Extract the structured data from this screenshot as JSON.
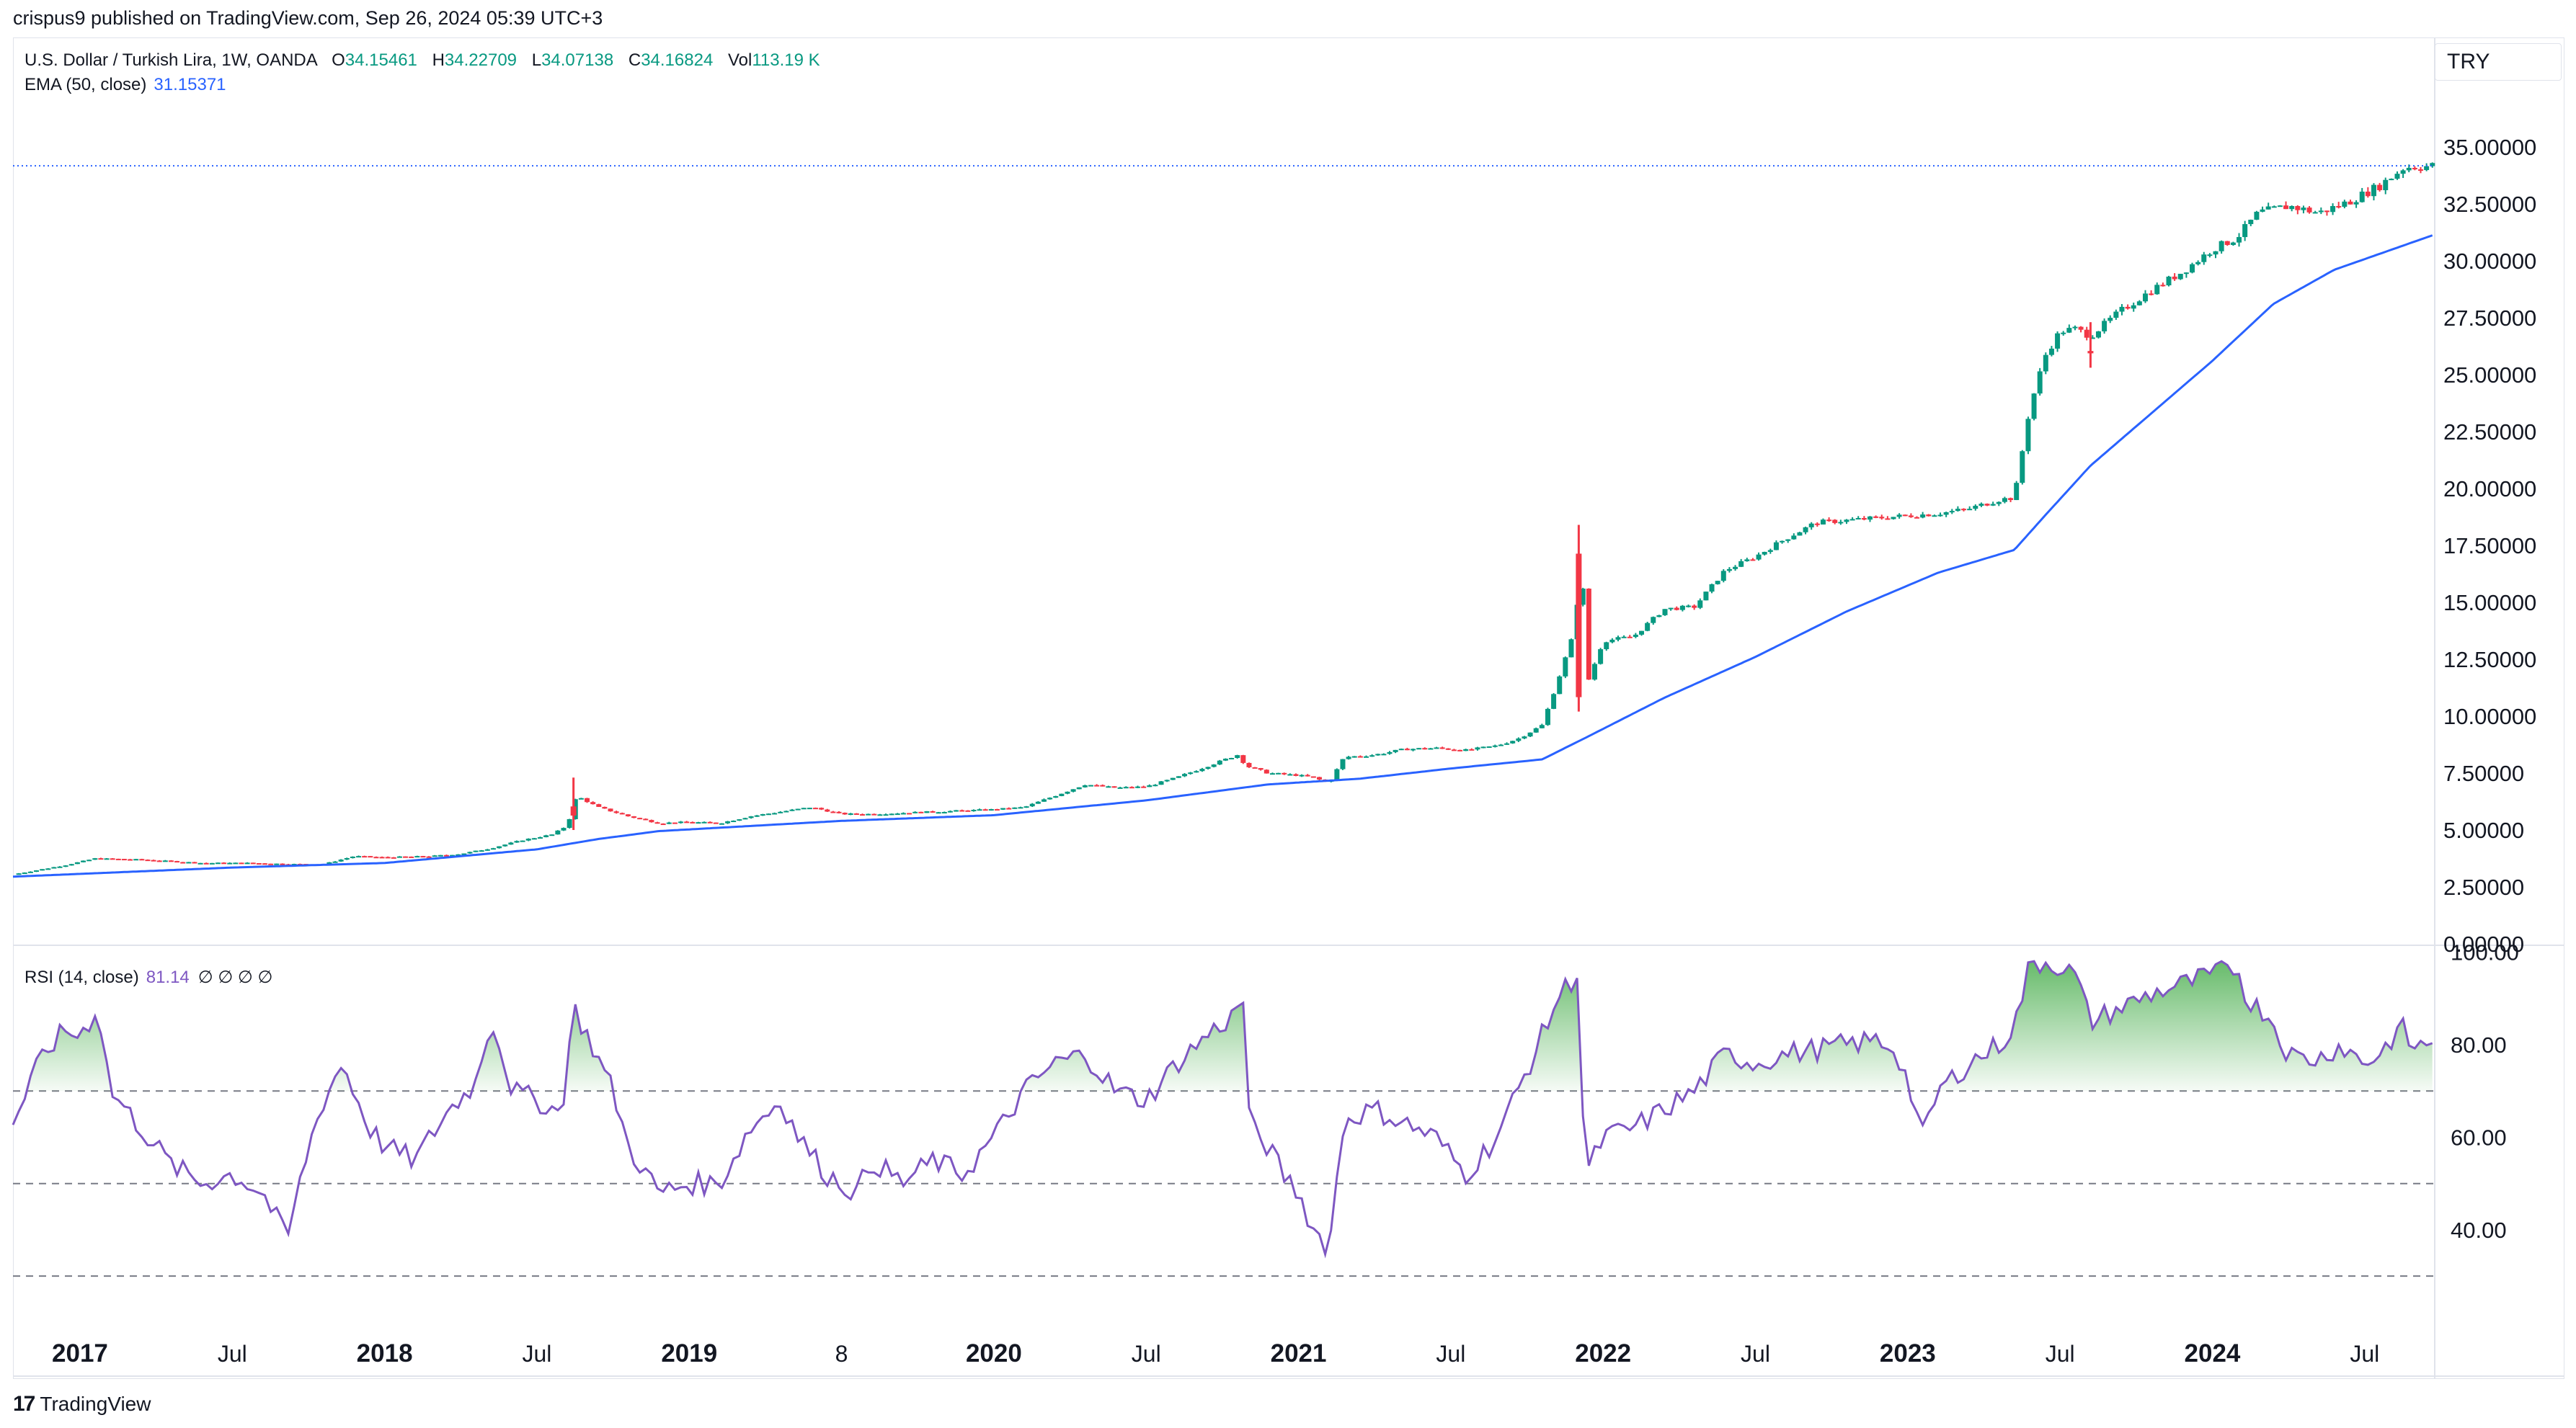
{
  "header": {
    "publisher": "crispus9 published on TradingView.com, Sep 26, 2024 05:39 UTC+3"
  },
  "legend": {
    "symbol": "U.S. Dollar / Turkish Lira, 1W, OANDA",
    "o_label": "O",
    "o_value": "34.15461",
    "h_label": "H",
    "h_value": "34.22709",
    "l_label": "L",
    "l_value": "34.07138",
    "c_label": "C",
    "c_value": "34.16824",
    "vol_label": "Vol",
    "vol_value": "113.19 K",
    "ema_label": "EMA (50, close)",
    "ema_value": "31.15371",
    "rsi_label": "RSI (14, close)",
    "rsi_value": "81.14",
    "rsi_null": "∅ ∅ ∅ ∅"
  },
  "currency": "TRY",
  "footer": {
    "brand": "TradingView"
  },
  "colors": {
    "up": "#089981",
    "down": "#f23645",
    "ema": "#2962ff",
    "rsi": "#7e57c2",
    "rsi_fill": "#4caf50"
  },
  "chart_data": [
    {
      "type": "line",
      "subtype": "candlestick",
      "price_ticks": [
        "0.00000",
        "2.50000",
        "5.00000",
        "7.50000",
        "10.00000",
        "12.50000",
        "15.00000",
        "17.50000",
        "20.00000",
        "22.50000",
        "25.00000",
        "27.50000",
        "30.00000",
        "32.50000",
        "35.00000"
      ],
      "ylim": [
        0,
        35.5
      ],
      "x_ticks": [
        {
          "label": "2017",
          "t": 2017.0,
          "bold": true
        },
        {
          "label": "Jul",
          "t": 2017.5
        },
        {
          "label": "2018",
          "t": 2018.0,
          "bold": true
        },
        {
          "label": "Jul",
          "t": 2018.5
        },
        {
          "label": "2019",
          "t": 2019.0,
          "bold": true
        },
        {
          "label": "8",
          "t": 2019.5
        },
        {
          "label": "2020",
          "t": 2020.0,
          "bold": true
        },
        {
          "label": "Jul",
          "t": 2020.5
        },
        {
          "label": "2021",
          "t": 2021.0,
          "bold": true
        },
        {
          "label": "Jul",
          "t": 2021.5
        },
        {
          "label": "2022",
          "t": 2022.0,
          "bold": true
        },
        {
          "label": "Jul",
          "t": 2022.5
        },
        {
          "label": "2023",
          "t": 2023.0,
          "bold": true
        },
        {
          "label": "Jul",
          "t": 2023.5
        },
        {
          "label": "2024",
          "t": 2024.0,
          "bold": true
        },
        {
          "label": "Jul",
          "t": 2024.5
        }
      ],
      "xlim": [
        2016.78,
        2024.73
      ],
      "last_price": 34.16824,
      "close_anchors": [
        [
          2016.78,
          3.05
        ],
        [
          2016.95,
          3.45
        ],
        [
          2017.05,
          3.75
        ],
        [
          2017.2,
          3.7
        ],
        [
          2017.4,
          3.55
        ],
        [
          2017.55,
          3.55
        ],
        [
          2017.7,
          3.5
        ],
        [
          2017.8,
          3.5
        ],
        [
          2017.9,
          3.85
        ],
        [
          2018.0,
          3.8
        ],
        [
          2018.15,
          3.85
        ],
        [
          2018.25,
          3.95
        ],
        [
          2018.35,
          4.2
        ],
        [
          2018.45,
          4.55
        ],
        [
          2018.55,
          4.8
        ],
        [
          2018.6,
          5.2
        ],
        [
          2018.63,
          6.5
        ],
        [
          2018.7,
          6.0
        ],
        [
          2018.8,
          5.6
        ],
        [
          2018.9,
          5.3
        ],
        [
          2019.0,
          5.35
        ],
        [
          2019.1,
          5.3
        ],
        [
          2019.2,
          5.6
        ],
        [
          2019.3,
          5.8
        ],
        [
          2019.4,
          6.0
        ],
        [
          2019.5,
          5.7
        ],
        [
          2019.6,
          5.7
        ],
        [
          2019.7,
          5.75
        ],
        [
          2019.8,
          5.8
        ],
        [
          2019.9,
          5.85
        ],
        [
          2020.0,
          5.9
        ],
        [
          2020.1,
          6.0
        ],
        [
          2020.2,
          6.5
        ],
        [
          2020.3,
          7.0
        ],
        [
          2020.4,
          6.85
        ],
        [
          2020.5,
          6.9
        ],
        [
          2020.6,
          7.3
        ],
        [
          2020.7,
          7.8
        ],
        [
          2020.8,
          8.3
        ],
        [
          2020.83,
          7.8
        ],
        [
          2020.9,
          7.5
        ],
        [
          2021.0,
          7.4
        ],
        [
          2021.05,
          7.3
        ],
        [
          2021.1,
          7.05
        ],
        [
          2021.15,
          8.2
        ],
        [
          2021.25,
          8.3
        ],
        [
          2021.35,
          8.55
        ],
        [
          2021.45,
          8.6
        ],
        [
          2021.55,
          8.5
        ],
        [
          2021.65,
          8.7
        ],
        [
          2021.72,
          9.0
        ],
        [
          2021.8,
          9.6
        ],
        [
          2021.85,
          11.5
        ],
        [
          2021.9,
          13.5
        ],
        [
          2021.93,
          16.5
        ],
        [
          2021.95,
          11.5
        ],
        [
          2022.0,
          13.3
        ],
        [
          2022.1,
          13.5
        ],
        [
          2022.2,
          14.7
        ],
        [
          2022.3,
          14.8
        ],
        [
          2022.4,
          16.4
        ],
        [
          2022.5,
          17.0
        ],
        [
          2022.6,
          17.8
        ],
        [
          2022.7,
          18.5
        ],
        [
          2022.8,
          18.6
        ],
        [
          2022.9,
          18.7
        ],
        [
          2023.0,
          18.8
        ],
        [
          2023.1,
          18.9
        ],
        [
          2023.2,
          19.1
        ],
        [
          2023.3,
          19.5
        ],
        [
          2023.35,
          19.6
        ],
        [
          2023.4,
          23.5
        ],
        [
          2023.45,
          25.8
        ],
        [
          2023.5,
          26.9
        ],
        [
          2023.55,
          27.0
        ],
        [
          2023.6,
          26.7
        ],
        [
          2023.7,
          27.8
        ],
        [
          2023.8,
          28.7
        ],
        [
          2023.9,
          29.5
        ],
        [
          2024.0,
          30.5
        ],
        [
          2024.08,
          31.0
        ],
        [
          2024.15,
          32.1
        ],
        [
          2024.25,
          32.4
        ],
        [
          2024.35,
          32.1
        ],
        [
          2024.45,
          32.6
        ],
        [
          2024.55,
          33.3
        ],
        [
          2024.63,
          34.1
        ],
        [
          2024.73,
          34.17
        ]
      ],
      "ema_anchors": [
        [
          2016.78,
          2.95
        ],
        [
          2017.5,
          3.35
        ],
        [
          2018.0,
          3.55
        ],
        [
          2018.5,
          4.15
        ],
        [
          2018.7,
          4.6
        ],
        [
          2018.9,
          4.95
        ],
        [
          2019.5,
          5.4
        ],
        [
          2020.0,
          5.65
        ],
        [
          2020.5,
          6.3
        ],
        [
          2020.9,
          7.0
        ],
        [
          2021.2,
          7.25
        ],
        [
          2021.5,
          7.7
        ],
        [
          2021.8,
          8.1
        ],
        [
          2021.95,
          9.1
        ],
        [
          2022.2,
          10.8
        ],
        [
          2022.5,
          12.6
        ],
        [
          2022.8,
          14.6
        ],
        [
          2023.1,
          16.3
        ],
        [
          2023.35,
          17.3
        ],
        [
          2023.45,
          18.8
        ],
        [
          2023.6,
          21.0
        ],
        [
          2023.8,
          23.3
        ],
        [
          2024.0,
          25.6
        ],
        [
          2024.2,
          28.1
        ],
        [
          2024.4,
          29.6
        ],
        [
          2024.73,
          31.15
        ]
      ],
      "wick_spikes": [
        [
          2021.92,
          18.4,
          10.2
        ],
        [
          2023.6,
          27.3,
          25.3
        ],
        [
          2018.62,
          7.3,
          5.0
        ]
      ]
    },
    {
      "type": "area",
      "title": "RSI (14, close)",
      "rsi_ticks": [
        "40.00",
        "60.00",
        "80.00",
        "100.00"
      ],
      "ylim": [
        25.2,
        101.5
      ],
      "bands": [
        70,
        50,
        30
      ],
      "xlim": [
        2016.78,
        2024.73
      ],
      "rsi_anchors": [
        [
          2016.78,
          63
        ],
        [
          2016.88,
          78
        ],
        [
          2016.95,
          83
        ],
        [
          2017.0,
          82
        ],
        [
          2017.06,
          88
        ],
        [
          2017.1,
          70
        ],
        [
          2017.2,
          62
        ],
        [
          2017.3,
          54
        ],
        [
          2017.4,
          50
        ],
        [
          2017.5,
          52
        ],
        [
          2017.6,
          48
        ],
        [
          2017.68,
          38
        ],
        [
          2017.75,
          58
        ],
        [
          2017.8,
          68
        ],
        [
          2017.86,
          76
        ],
        [
          2017.95,
          62
        ],
        [
          2018.0,
          58
        ],
        [
          2018.1,
          55
        ],
        [
          2018.2,
          65
        ],
        [
          2018.3,
          72
        ],
        [
          2018.35,
          86
        ],
        [
          2018.42,
          70
        ],
        [
          2018.5,
          68
        ],
        [
          2018.58,
          65
        ],
        [
          2018.62,
          88
        ],
        [
          2018.68,
          80
        ],
        [
          2018.75,
          70
        ],
        [
          2018.8,
          58
        ],
        [
          2018.9,
          48
        ],
        [
          2019.0,
          50
        ],
        [
          2019.1,
          50
        ],
        [
          2019.2,
          62
        ],
        [
          2019.3,
          68
        ],
        [
          2019.36,
          60
        ],
        [
          2019.45,
          52
        ],
        [
          2019.55,
          48
        ],
        [
          2019.6,
          55
        ],
        [
          2019.7,
          50
        ],
        [
          2019.8,
          55
        ],
        [
          2019.9,
          52
        ],
        [
          2020.0,
          60
        ],
        [
          2020.1,
          70
        ],
        [
          2020.2,
          76
        ],
        [
          2020.3,
          78
        ],
        [
          2020.4,
          70
        ],
        [
          2020.5,
          68
        ],
        [
          2020.6,
          76
        ],
        [
          2020.7,
          82
        ],
        [
          2020.78,
          86
        ],
        [
          2020.82,
          90
        ],
        [
          2020.84,
          62
        ],
        [
          2020.9,
          58
        ],
        [
          2020.95,
          52
        ],
        [
          2021.0,
          48
        ],
        [
          2021.05,
          40
        ],
        [
          2021.1,
          36
        ],
        [
          2021.15,
          64
        ],
        [
          2021.25,
          66
        ],
        [
          2021.35,
          63
        ],
        [
          2021.45,
          60
        ],
        [
          2021.55,
          52
        ],
        [
          2021.65,
          60
        ],
        [
          2021.72,
          70
        ],
        [
          2021.8,
          82
        ],
        [
          2021.85,
          90
        ],
        [
          2021.92,
          96
        ],
        [
          2021.94,
          51
        ],
        [
          2022.0,
          60
        ],
        [
          2022.1,
          62
        ],
        [
          2022.2,
          66
        ],
        [
          2022.3,
          70
        ],
        [
          2022.4,
          78
        ],
        [
          2022.5,
          76
        ],
        [
          2022.6,
          78
        ],
        [
          2022.7,
          79
        ],
        [
          2022.8,
          80
        ],
        [
          2022.9,
          81
        ],
        [
          2022.96,
          79
        ],
        [
          2023.0,
          72
        ],
        [
          2023.05,
          60
        ],
        [
          2023.1,
          70
        ],
        [
          2023.2,
          76
        ],
        [
          2023.3,
          80
        ],
        [
          2023.35,
          84
        ],
        [
          2023.4,
          97
        ],
        [
          2023.45,
          98
        ],
        [
          2023.5,
          97
        ],
        [
          2023.55,
          95
        ],
        [
          2023.6,
          85
        ],
        [
          2023.7,
          88
        ],
        [
          2023.8,
          91
        ],
        [
          2023.9,
          93
        ],
        [
          2024.0,
          95
        ],
        [
          2024.08,
          97
        ],
        [
          2024.12,
          89
        ],
        [
          2024.18,
          87
        ],
        [
          2024.25,
          78
        ],
        [
          2024.3,
          77
        ],
        [
          2024.35,
          77
        ],
        [
          2024.42,
          80
        ],
        [
          2024.5,
          76
        ],
        [
          2024.55,
          78
        ],
        [
          2024.62,
          84
        ],
        [
          2024.66,
          79
        ],
        [
          2024.73,
          81.14
        ]
      ]
    }
  ]
}
